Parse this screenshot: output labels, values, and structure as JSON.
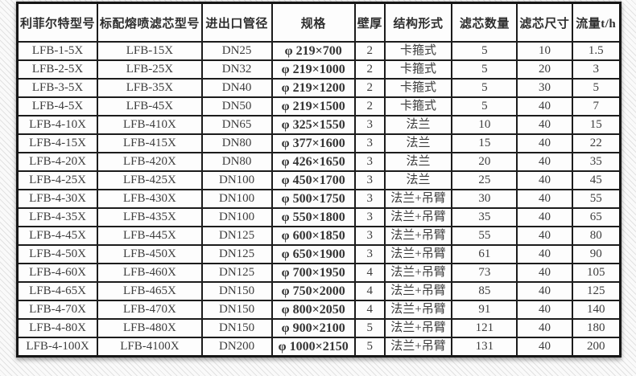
{
  "colors": {
    "border": "#1c1c1c",
    "text": "#3d3d3d",
    "cell_background": "#fdfdfd",
    "page_hatch": "#e2e2e2"
  },
  "table": {
    "headers": [
      "利菲尔特型号",
      "标配熔喷滤芯型号",
      "进出口管径",
      "规格",
      "壁厚",
      "结构形式",
      "滤芯数量",
      "滤芯尺寸",
      "流量t/h"
    ],
    "rows": [
      [
        "LFB-1-5X",
        "LFB-15X",
        "DN25",
        "φ 219×700",
        "2",
        "卡箍式",
        "5",
        "10",
        "1.5"
      ],
      [
        "LFB-2-5X",
        "LFB-25X",
        "DN32",
        "φ 219×1000",
        "2",
        "卡箍式",
        "5",
        "20",
        "3"
      ],
      [
        "LFB-3-5X",
        "LFB-35X",
        "DN40",
        "φ 219×1200",
        "2",
        "卡箍式",
        "5",
        "30",
        "5"
      ],
      [
        "LFB-4-5X",
        "LFB-45X",
        "DN50",
        "φ 219×1500",
        "2",
        "卡箍式",
        "5",
        "40",
        "7"
      ],
      [
        "LFB-4-10X",
        "LFB-410X",
        "DN65",
        "φ 325×1550",
        "3",
        "法兰",
        "10",
        "40",
        "15"
      ],
      [
        "LFB-4-15X",
        "LFB-415X",
        "DN80",
        "φ 377×1600",
        "3",
        "法兰",
        "15",
        "40",
        "22"
      ],
      [
        "LFB-4-20X",
        "LFB-420X",
        "DN80",
        "φ 426×1650",
        "3",
        "法兰",
        "20",
        "40",
        "35"
      ],
      [
        "LFB-4-25X",
        "LFB-425X",
        "DN100",
        "φ 450×1700",
        "3",
        "法兰",
        "25",
        "40",
        "45"
      ],
      [
        "LFB-4-30X",
        "LFB-430X",
        "DN100",
        "φ 500×1750",
        "3",
        "法兰+吊臂",
        "30",
        "40",
        "55"
      ],
      [
        "LFB-4-35X",
        "LFB-435X",
        "DN100",
        "φ 550×1800",
        "3",
        "法兰+吊臂",
        "35",
        "40",
        "65"
      ],
      [
        "LFB-4-45X",
        "LFB-445X",
        "DN125",
        "φ 600×1850",
        "3",
        "法兰+吊臂",
        "55",
        "40",
        "80"
      ],
      [
        "LFB-4-50X",
        "LFB-450X",
        "DN125",
        "φ 650×1900",
        "3",
        "法兰+吊臂",
        "61",
        "40",
        "90"
      ],
      [
        "LFB-4-60X",
        "LFB-460X",
        "DN125",
        "φ 700×1950",
        "4",
        "法兰+吊臂",
        "73",
        "40",
        "105"
      ],
      [
        "LFB-4-65X",
        "LFB-465X",
        "DN150",
        "φ 750×2000",
        "4",
        "法兰+吊臂",
        "85",
        "40",
        "125"
      ],
      [
        "LFB-4-70X",
        "LFB-470X",
        "DN150",
        "φ 800×2050",
        "4",
        "法兰+吊臂",
        "91",
        "40",
        "140"
      ],
      [
        "LFB-4-80X",
        "LFB-480X",
        "DN150",
        "φ 900×2100",
        "5",
        "法兰+吊臂",
        "121",
        "40",
        "180"
      ],
      [
        "LFB-4-100X",
        "LFB-4100X",
        "DN200",
        "φ 1000×2150",
        "5",
        "法兰+吊臂",
        "131",
        "40",
        "200"
      ]
    ]
  }
}
